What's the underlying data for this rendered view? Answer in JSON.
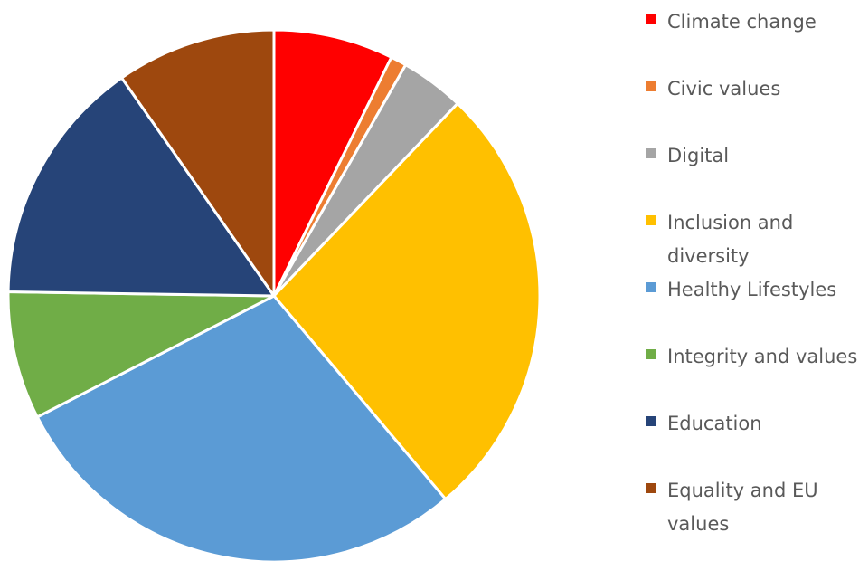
{
  "chart_data": {
    "type": "pie",
    "title": "",
    "legend_position": "right",
    "slices": [
      {
        "label": "Climate change",
        "value": 7.5,
        "color": "#FF0000"
      },
      {
        "label": "Civic values",
        "value": 1,
        "color": "#ED7D31"
      },
      {
        "label": "Digital",
        "value": 4,
        "color": "#A5A5A5"
      },
      {
        "label": "Inclusion and diversity",
        "value": 27.5,
        "color": "#FFC000"
      },
      {
        "label": "Healthy Lifestyles",
        "value": 29.5,
        "color": "#5B9BD5"
      },
      {
        "label": "Integrity and values",
        "value": 8,
        "color": "#70AD47"
      },
      {
        "label": "Education",
        "value": 15.5,
        "color": "#264478"
      },
      {
        "label": "Equality and EU values",
        "value": 10,
        "color": "#9E480E"
      }
    ]
  }
}
